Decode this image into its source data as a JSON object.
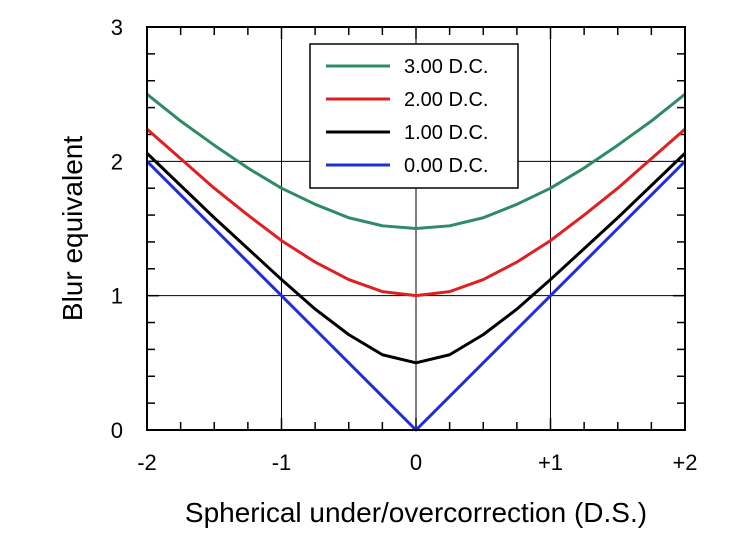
{
  "chart_data": {
    "type": "line",
    "xlabel": "Spherical under/overcorrection (D.S.)",
    "ylabel": "Blur equivalent",
    "xlim": [
      -2,
      2
    ],
    "ylim": [
      0,
      3
    ],
    "x_ticks": [
      {
        "value": -2,
        "label": "-2"
      },
      {
        "value": -1,
        "label": "-1"
      },
      {
        "value": 0,
        "label": "0"
      },
      {
        "value": 1,
        "label": "+1"
      },
      {
        "value": 2,
        "label": "+2"
      }
    ],
    "y_ticks": [
      {
        "value": 0,
        "label": "0"
      },
      {
        "value": 1,
        "label": "1"
      },
      {
        "value": 2,
        "label": "2"
      },
      {
        "value": 3,
        "label": "3"
      }
    ],
    "grid": true,
    "legend_position": "top-center",
    "x": [
      -2,
      -1.75,
      -1.5,
      -1.25,
      -1,
      -0.75,
      -0.5,
      -0.25,
      0,
      0.25,
      0.5,
      0.75,
      1,
      1.25,
      1.5,
      1.75,
      2
    ],
    "series": [
      {
        "name": "3.00 D.C.",
        "color": "#2e8b64",
        "values": [
          2.5,
          2.3,
          2.12,
          1.95,
          1.8,
          1.68,
          1.58,
          1.52,
          1.5,
          1.52,
          1.58,
          1.68,
          1.8,
          1.95,
          2.12,
          2.3,
          2.5
        ]
      },
      {
        "name": "2.00 D.C.",
        "color": "#e02020",
        "values": [
          2.24,
          2.02,
          1.8,
          1.6,
          1.41,
          1.25,
          1.12,
          1.03,
          1.0,
          1.03,
          1.12,
          1.25,
          1.41,
          1.6,
          1.8,
          2.02,
          2.24
        ]
      },
      {
        "name": "1.00 D.C.",
        "color": "#000000",
        "values": [
          2.06,
          1.82,
          1.58,
          1.35,
          1.12,
          0.9,
          0.71,
          0.56,
          0.5,
          0.56,
          0.71,
          0.9,
          1.12,
          1.35,
          1.58,
          1.82,
          2.06
        ]
      },
      {
        "name": "0.00 D.C.",
        "color": "#1f2fd6",
        "values": [
          2.0,
          1.75,
          1.5,
          1.25,
          1.0,
          0.75,
          0.5,
          0.25,
          0.0,
          0.25,
          0.5,
          0.75,
          1.0,
          1.25,
          1.5,
          1.75,
          2.0
        ]
      }
    ]
  }
}
